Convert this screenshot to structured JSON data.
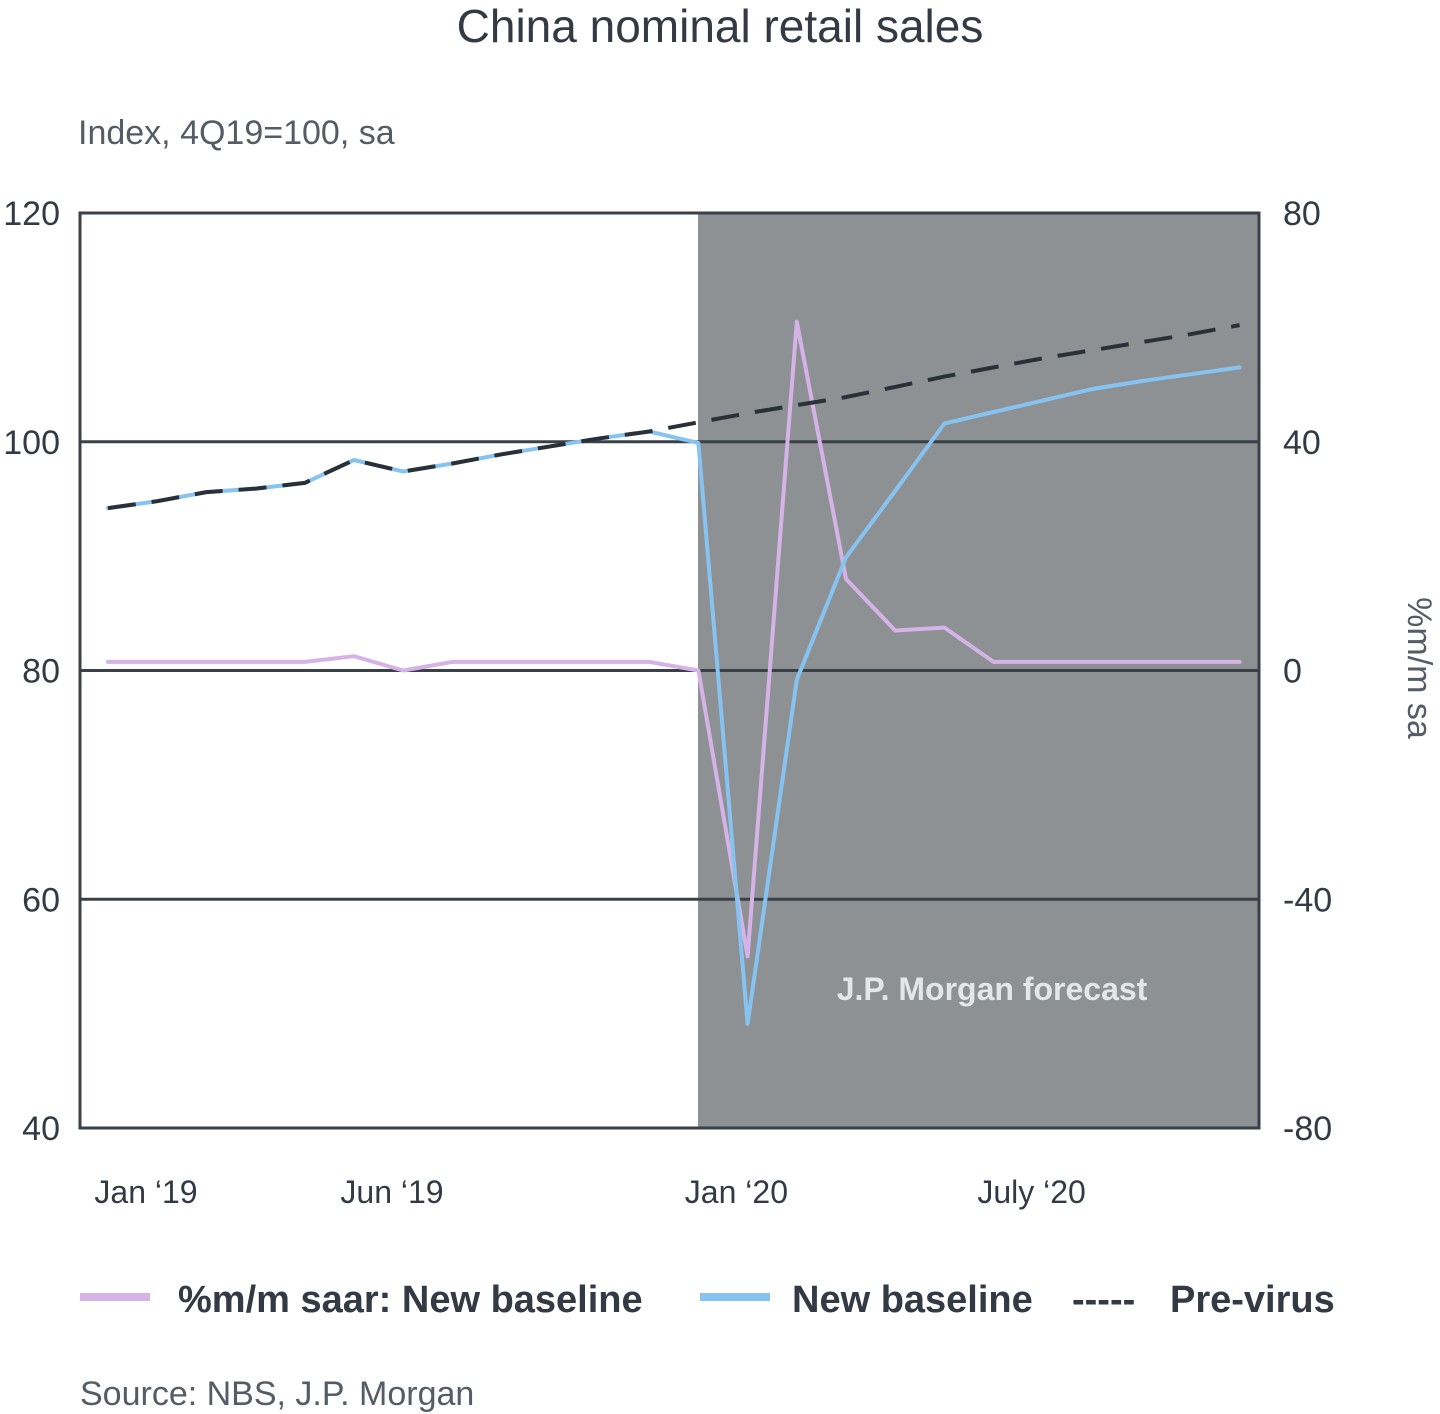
{
  "chart_data": {
    "type": "line",
    "title": "China nominal retail sales",
    "subtitle": "Index, 4Q19=100, sa",
    "ylabel_left": "Index, 4Q19=100, sa",
    "ylabel_right": "%m/m sa",
    "ylim_left": [
      40,
      120
    ],
    "ylim_right": [
      -80,
      80
    ],
    "yticks_left": [
      "120",
      "100",
      "80",
      "60",
      "40"
    ],
    "yticks_right": [
      "80",
      "40",
      "0",
      "-40",
      "-80"
    ],
    "x_tick_labels": [
      "Jan ‘19",
      "Jun ‘19",
      "Jan ‘20",
      "July ‘20"
    ],
    "forecast_label": "J.P. Morgan forecast",
    "forecast_start": "Jan 2020",
    "months": [
      "Jan 2019",
      "Feb 2019",
      "Mar 2019",
      "Apr 2019",
      "May 2019",
      "Jun 2019",
      "Jul 2019",
      "Aug 2019",
      "Sep 2019",
      "Oct 2019",
      "Nov 2019",
      "Dec 2019",
      "Jan 2020",
      "Feb 2020",
      "Mar 2020",
      "Apr 2020",
      "May 2020",
      "Jun 2020",
      "Jul 2020",
      "Aug 2020",
      "Sep 2020",
      "Oct 2020",
      "Nov 2020",
      "Dec 2020"
    ],
    "series": [
      {
        "name": "%m/m saar: New baseline",
        "axis": "right",
        "color": "#d6b3e6",
        "style": "solid",
        "values": [
          1.5,
          1.5,
          1.5,
          1.5,
          1.5,
          2.5,
          0,
          1.5,
          1.5,
          1.5,
          1.5,
          1.5,
          0,
          -50,
          61,
          16,
          7,
          7.5,
          1.5,
          1.5,
          1.5,
          1.5,
          1.5,
          1.5
        ]
      },
      {
        "name": "New baseline",
        "axis": "left",
        "color": "#87c3f1",
        "style": "solid",
        "values": [
          94.2,
          94.8,
          95.6,
          95.9,
          96.4,
          98.4,
          97.4,
          98.1,
          98.9,
          99.6,
          100.3,
          100.9,
          99.9,
          49.1,
          79.2,
          89.9,
          95.7,
          101.6,
          102.6,
          103.6,
          104.6,
          105.3,
          105.9,
          106.5
        ]
      },
      {
        "name": "Pre-virus",
        "axis": "left",
        "color": "#2a3038",
        "style": "dashed",
        "values": [
          94.2,
          94.8,
          95.6,
          95.9,
          96.4,
          98.4,
          97.4,
          98.1,
          98.9,
          99.6,
          100.3,
          100.9,
          101.7,
          102.5,
          103.2,
          103.9,
          104.8,
          105.7,
          106.5,
          107.3,
          108.0,
          108.7,
          109.4,
          110.2
        ]
      }
    ]
  },
  "legend": {
    "items": [
      {
        "label": "%m/m saar: New baseline",
        "color": "#d6b3e6"
      },
      {
        "label": "New baseline",
        "color": "#87c3f1"
      },
      {
        "label": "Pre-virus",
        "color": "#2a3038",
        "marker": "-----"
      }
    ]
  },
  "source": "Source: NBS, J.P. Morgan"
}
